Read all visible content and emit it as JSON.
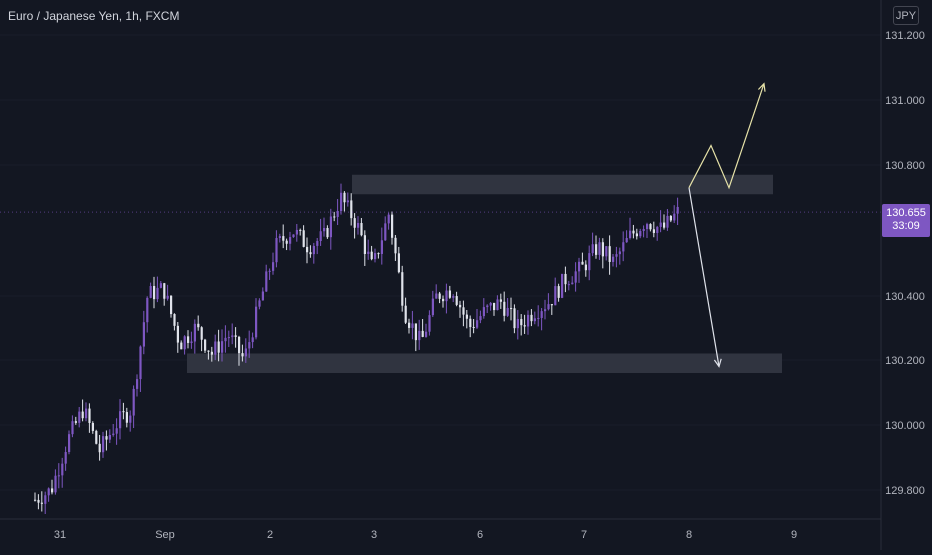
{
  "header": {
    "symbol_title": "Euro / Japanese Yen, 1h, FXCM",
    "currency": "JPY"
  },
  "last_price": {
    "value": "130.655",
    "countdown": "33:09",
    "color": "#7e57c2"
  },
  "colors": {
    "background": "#131722",
    "up_candle": "#7e57c2",
    "down_candle": "#e0e3eb",
    "zone": "#363a45",
    "bull_arrow": "#e6e2a8",
    "bear_arrow": "#e0e3eb",
    "axis_text": "#b2b5be"
  },
  "chart_data": {
    "type": "candlestick",
    "y_axis": {
      "ticks": [
        "131.200",
        "131.000",
        "130.800",
        "130.400",
        "130.200",
        "130.000",
        "129.800"
      ],
      "ylim": [
        129.75,
        131.25
      ]
    },
    "x_axis": {
      "ticks": [
        "31",
        "Sep",
        "2",
        "3",
        "6",
        "7",
        "8",
        "9"
      ]
    },
    "close_path": [
      [
        "31",
        129.77
      ],
      [
        "31",
        129.8
      ],
      [
        "31",
        129.95
      ],
      [
        "31",
        130.05
      ],
      [
        "31",
        129.92
      ],
      [
        "Sep",
        130.0
      ],
      [
        "Sep",
        130.05
      ],
      [
        "Sep",
        130.4
      ],
      [
        "Sep",
        130.42
      ],
      [
        "Sep",
        130.25
      ],
      [
        "Sep",
        130.3
      ],
      [
        "Sep",
        130.22
      ],
      [
        "Sep",
        130.28
      ],
      [
        "2",
        130.2
      ],
      [
        "2",
        130.38
      ],
      [
        "2",
        130.55
      ],
      [
        "2",
        130.6
      ],
      [
        "2",
        130.55
      ],
      [
        "3",
        130.58
      ],
      [
        "3",
        130.7
      ],
      [
        "3",
        130.62
      ],
      [
        "3",
        130.48
      ],
      [
        "3",
        130.65
      ],
      [
        "3",
        130.35
      ],
      [
        "3",
        130.25
      ],
      [
        "3",
        130.4
      ],
      [
        "6",
        130.42
      ],
      [
        "6",
        130.3
      ],
      [
        "6",
        130.35
      ],
      [
        "6",
        130.38
      ],
      [
        "6",
        130.3
      ],
      [
        "6",
        130.35
      ],
      [
        "7",
        130.38
      ],
      [
        "7",
        130.45
      ],
      [
        "7",
        130.48
      ],
      [
        "7",
        130.55
      ],
      [
        "7",
        130.5
      ],
      [
        "7",
        130.58
      ],
      [
        "7",
        130.63
      ],
      [
        "7",
        130.6
      ],
      [
        "8",
        130.655
      ]
    ],
    "zones": [
      {
        "name": "resistance",
        "from": "3",
        "to": "8",
        "low": 130.71,
        "high": 130.77
      },
      {
        "name": "support",
        "from": "Sep",
        "to": "8",
        "low": 130.16,
        "high": 130.22
      }
    ],
    "projections": [
      {
        "name": "bullish",
        "points": [
          130.73,
          130.86,
          130.73,
          131.05
        ]
      },
      {
        "name": "bearish",
        "points": [
          130.73,
          130.18
        ]
      }
    ]
  }
}
